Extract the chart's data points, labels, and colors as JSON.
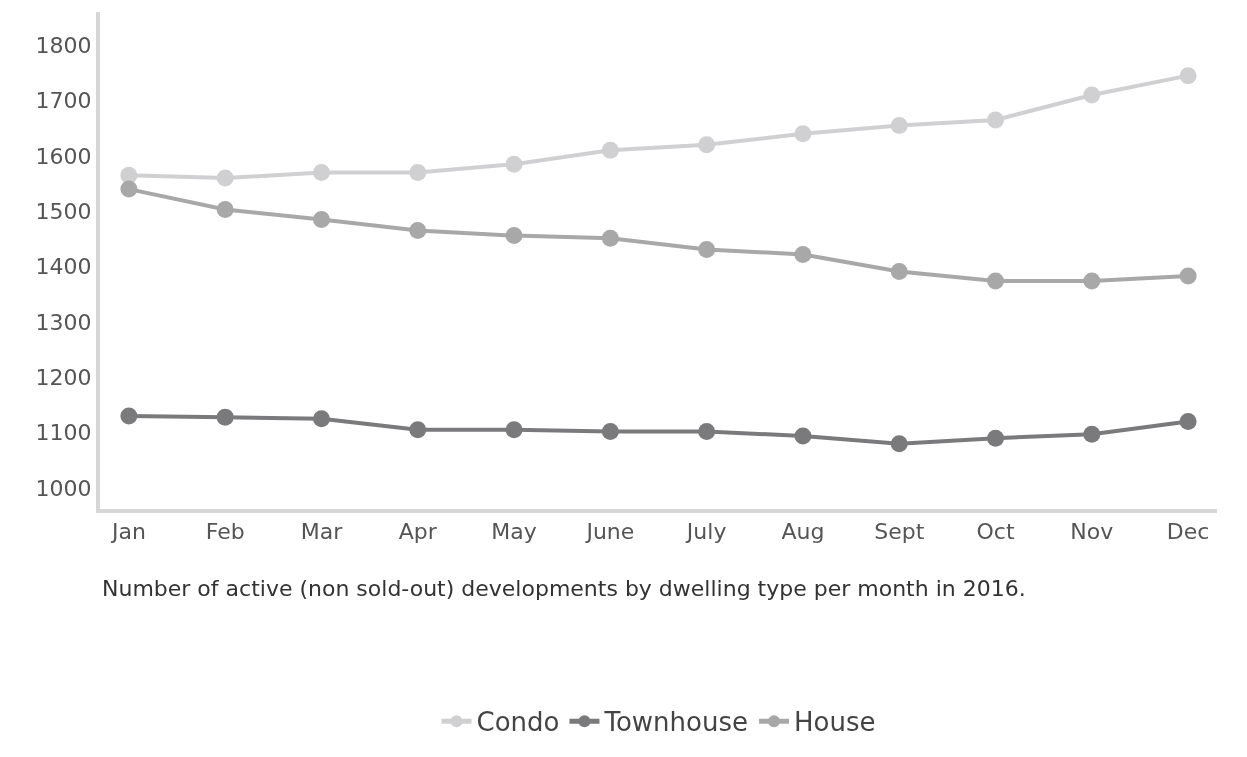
{
  "chart_data": {
    "type": "line",
    "categories": [
      "Jan",
      "Feb",
      "Mar",
      "Apr",
      "May",
      "June",
      "July",
      "Aug",
      "Sept",
      "Oct",
      "Nov",
      "Dec"
    ],
    "series": [
      {
        "name": "Condo",
        "color": "#d0d0d2",
        "values": [
          1565,
          1560,
          1570,
          1570,
          1585,
          1610,
          1620,
          1640,
          1655,
          1665,
          1710,
          1745
        ]
      },
      {
        "name": "Townhouse",
        "color": "#7a7a7c",
        "values": [
          1130,
          1128,
          1125,
          1105,
          1105,
          1102,
          1102,
          1094,
          1080,
          1090,
          1097,
          1120
        ]
      },
      {
        "name": "House",
        "color": "#a8a8a8",
        "values": [
          1540,
          1503,
          1485,
          1465,
          1456,
          1451,
          1431,
          1422,
          1391,
          1374,
          1374,
          1383
        ]
      }
    ],
    "ylim": [
      962,
      1860
    ],
    "yticks": [
      1000,
      1100,
      1200,
      1300,
      1400,
      1500,
      1600,
      1700,
      1800
    ],
    "legend": "bottom",
    "marker": "circle",
    "line_style": "solid",
    "annotations": [
      "Number of active (non sold-out) developments by dwelling type per month in 2016."
    ]
  }
}
